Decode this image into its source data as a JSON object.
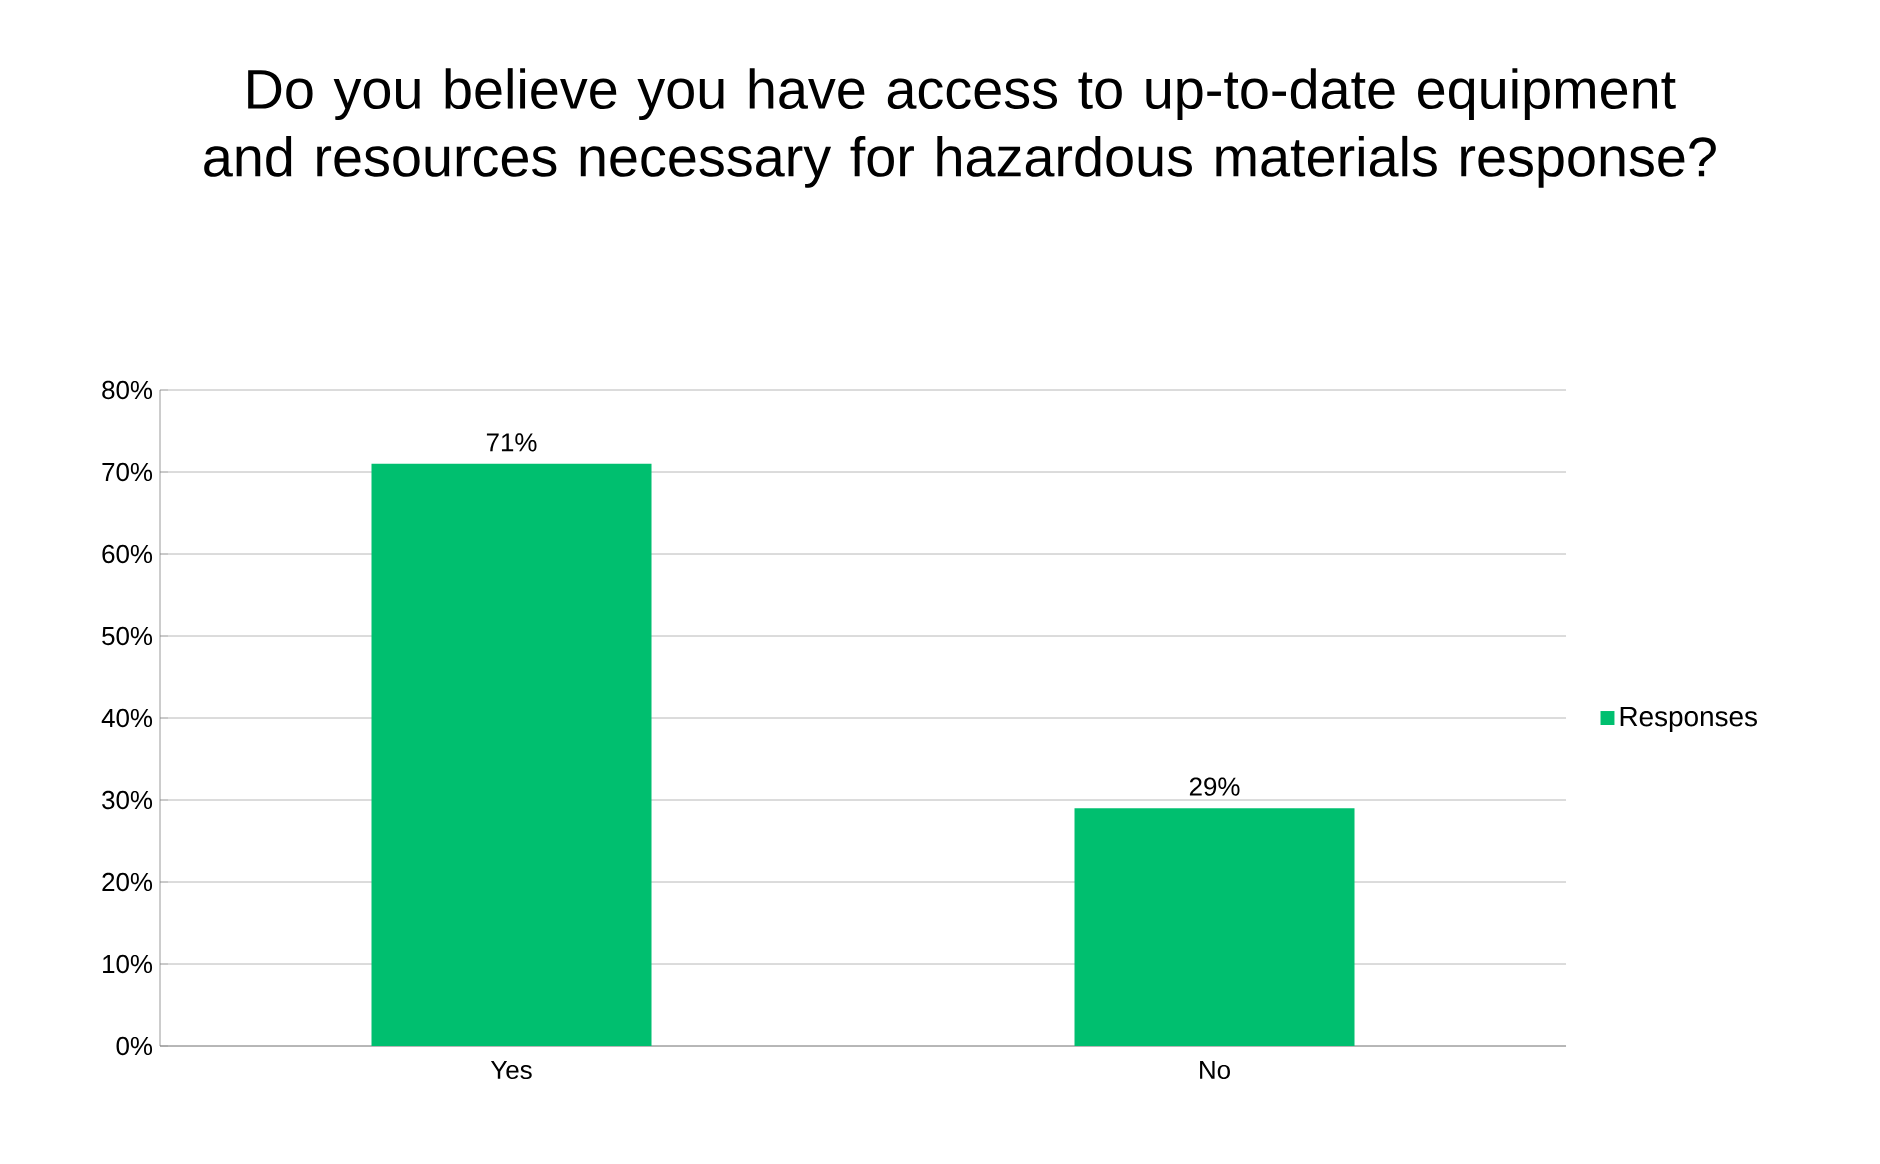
{
  "chart_data": {
    "type": "bar",
    "title": "Do you believe you have access to up-to-date equipment and resources necessary for hazardous materials response?",
    "categories": [
      "Yes",
      "No"
    ],
    "series": [
      {
        "name": "Responses",
        "color": "#00bf6f",
        "values": [
          71,
          29
        ],
        "value_labels": [
          "71%",
          "29%"
        ]
      }
    ],
    "ylim": [
      0,
      80
    ],
    "yticks": [
      {
        "value": 0,
        "label": "0%"
      },
      {
        "value": 10,
        "label": "10%"
      },
      {
        "value": 20,
        "label": "20%"
      },
      {
        "value": 30,
        "label": "30%"
      },
      {
        "value": 40,
        "label": "40%"
      },
      {
        "value": 50,
        "label": "50%"
      },
      {
        "value": 60,
        "label": "60%"
      },
      {
        "value": 70,
        "label": "70%"
      },
      {
        "value": 80,
        "label": "80%"
      }
    ],
    "grid": "y",
    "legend": "right"
  }
}
